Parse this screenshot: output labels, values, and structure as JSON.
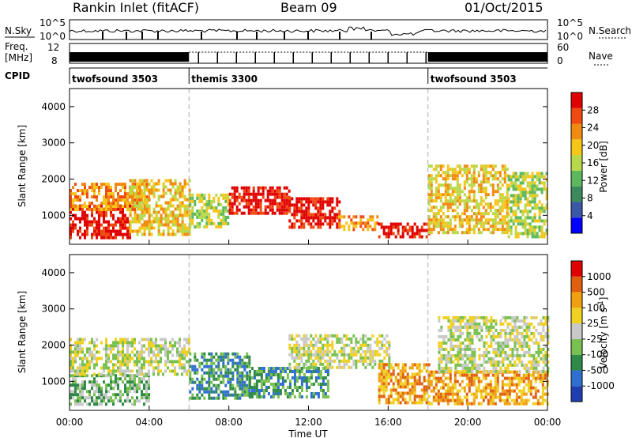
{
  "header": {
    "station": "Rankin Inlet (fitACF)",
    "beam": "Beam 09",
    "date": "01/Oct/2015"
  },
  "noise_panel": {
    "left_label": "N.Sky",
    "right_label": "N.Search",
    "left_ticks": [
      "10^5",
      "10^0"
    ],
    "right_ticks": [
      "10^5",
      "10^0"
    ]
  },
  "freq_panel": {
    "left_label_top": "Freq.",
    "left_label_bottom": "[MHz]",
    "right_label": "Nave",
    "left_ticks": [
      "12",
      "8"
    ],
    "right_ticks": [
      "60",
      "0"
    ]
  },
  "cpid": {
    "label": "CPID",
    "segments": [
      {
        "name": "twofsound 3503",
        "start_hour": 0,
        "end_hour": 6
      },
      {
        "name": "themis 3300",
        "start_hour": 6,
        "end_hour": 18
      },
      {
        "name": "twofsound 3503",
        "start_hour": 18,
        "end_hour": 24
      }
    ]
  },
  "colors": {
    "power": [
      "#0000ff",
      "#3a57a8",
      "#3c8a5c",
      "#5cb85c",
      "#b8d84a",
      "#f5c518",
      "#f08a10",
      "#f04a10",
      "#e00000"
    ],
    "velocity": [
      "#1f3fb0",
      "#2e6fd0",
      "#2f8a4a",
      "#78c050",
      "#c8c8c8",
      "#f0d020",
      "#f0a010",
      "#e06010",
      "#e00000"
    ]
  },
  "chart_data": [
    {
      "type": "heatmap",
      "name": "power",
      "ylabel": "Slant Range [km]",
      "ylim": [
        200,
        4500
      ],
      "xlim_hours": [
        0,
        24
      ],
      "y_ticks": [
        "1000",
        "2000",
        "3000",
        "4000"
      ],
      "x_ticks": [
        "00:00",
        "04:00",
        "08:00",
        "12:00",
        "16:00",
        "20:00",
        "00:00"
      ],
      "colorbar": {
        "label": "Power [dB]",
        "ticks": [
          "28",
          "24",
          "20",
          "16",
          "12",
          "8",
          "4"
        ]
      },
      "echo_bands": [
        {
          "start_hour": 0.0,
          "end_hour": 3.0,
          "range_low": 400,
          "range_high": 1300,
          "level": 8
        },
        {
          "start_hour": 0.0,
          "end_hour": 4.0,
          "range_low": 1200,
          "range_high": 1900,
          "level": 6
        },
        {
          "start_hour": 3.0,
          "end_hour": 6.0,
          "range_low": 500,
          "range_high": 2000,
          "level": 5
        },
        {
          "start_hour": 6.0,
          "end_hour": 8.0,
          "range_low": 700,
          "range_high": 1600,
          "level": 4
        },
        {
          "start_hour": 8.0,
          "end_hour": 11.0,
          "range_low": 1100,
          "range_high": 1800,
          "level": 8
        },
        {
          "start_hour": 11.0,
          "end_hour": 13.5,
          "range_low": 700,
          "range_high": 1500,
          "level": 8
        },
        {
          "start_hour": 13.5,
          "end_hour": 15.5,
          "range_low": 600,
          "range_high": 1000,
          "level": 6
        },
        {
          "start_hour": 15.5,
          "end_hour": 18.0,
          "range_low": 400,
          "range_high": 800,
          "level": 8
        },
        {
          "start_hour": 18.0,
          "end_hour": 22.0,
          "range_low": 500,
          "range_high": 2400,
          "level": 5
        },
        {
          "start_hour": 22.0,
          "end_hour": 24.0,
          "range_low": 400,
          "range_high": 2200,
          "level": 4
        }
      ]
    },
    {
      "type": "heatmap",
      "name": "velocity",
      "ylabel": "Slant Range [km]",
      "xlabel": "Time UT",
      "ylim": [
        200,
        4500
      ],
      "xlim_hours": [
        0,
        24
      ],
      "y_ticks": [
        "1000",
        "2000",
        "3000",
        "4000"
      ],
      "x_ticks": [
        "00:00",
        "04:00",
        "08:00",
        "12:00",
        "16:00",
        "20:00",
        "00:00"
      ],
      "colorbar": {
        "label": "Velocity [m s^-1]",
        "ticks": [
          "1000",
          "500",
          "100",
          "25",
          "-25",
          "-100",
          "-500",
          "-1000"
        ]
      },
      "echo_bands": [
        {
          "start_hour": 0.0,
          "end_hour": 4.0,
          "range_low": 400,
          "range_high": 1200,
          "level": 3
        },
        {
          "start_hour": 0.0,
          "end_hour": 6.0,
          "range_low": 1200,
          "range_high": 2200,
          "level": 4
        },
        {
          "start_hour": 6.0,
          "end_hour": 9.0,
          "range_low": 500,
          "range_high": 1800,
          "level": 2
        },
        {
          "start_hour": 9.0,
          "end_hour": 13.0,
          "range_low": 600,
          "range_high": 1400,
          "level": 2
        },
        {
          "start_hour": 11.0,
          "end_hour": 16.0,
          "range_low": 1400,
          "range_high": 2300,
          "level": 4
        },
        {
          "start_hour": 15.5,
          "end_hour": 18.0,
          "range_low": 400,
          "range_high": 1500,
          "level": 6
        },
        {
          "start_hour": 18.0,
          "end_hour": 24.0,
          "range_low": 400,
          "range_high": 1300,
          "level": 6
        },
        {
          "start_hour": 18.5,
          "end_hour": 24.0,
          "range_low": 1300,
          "range_high": 2800,
          "level": 4
        }
      ]
    }
  ],
  "axes": {
    "ylabel": "Slant Range [km]",
    "xlabel": "Time UT"
  }
}
